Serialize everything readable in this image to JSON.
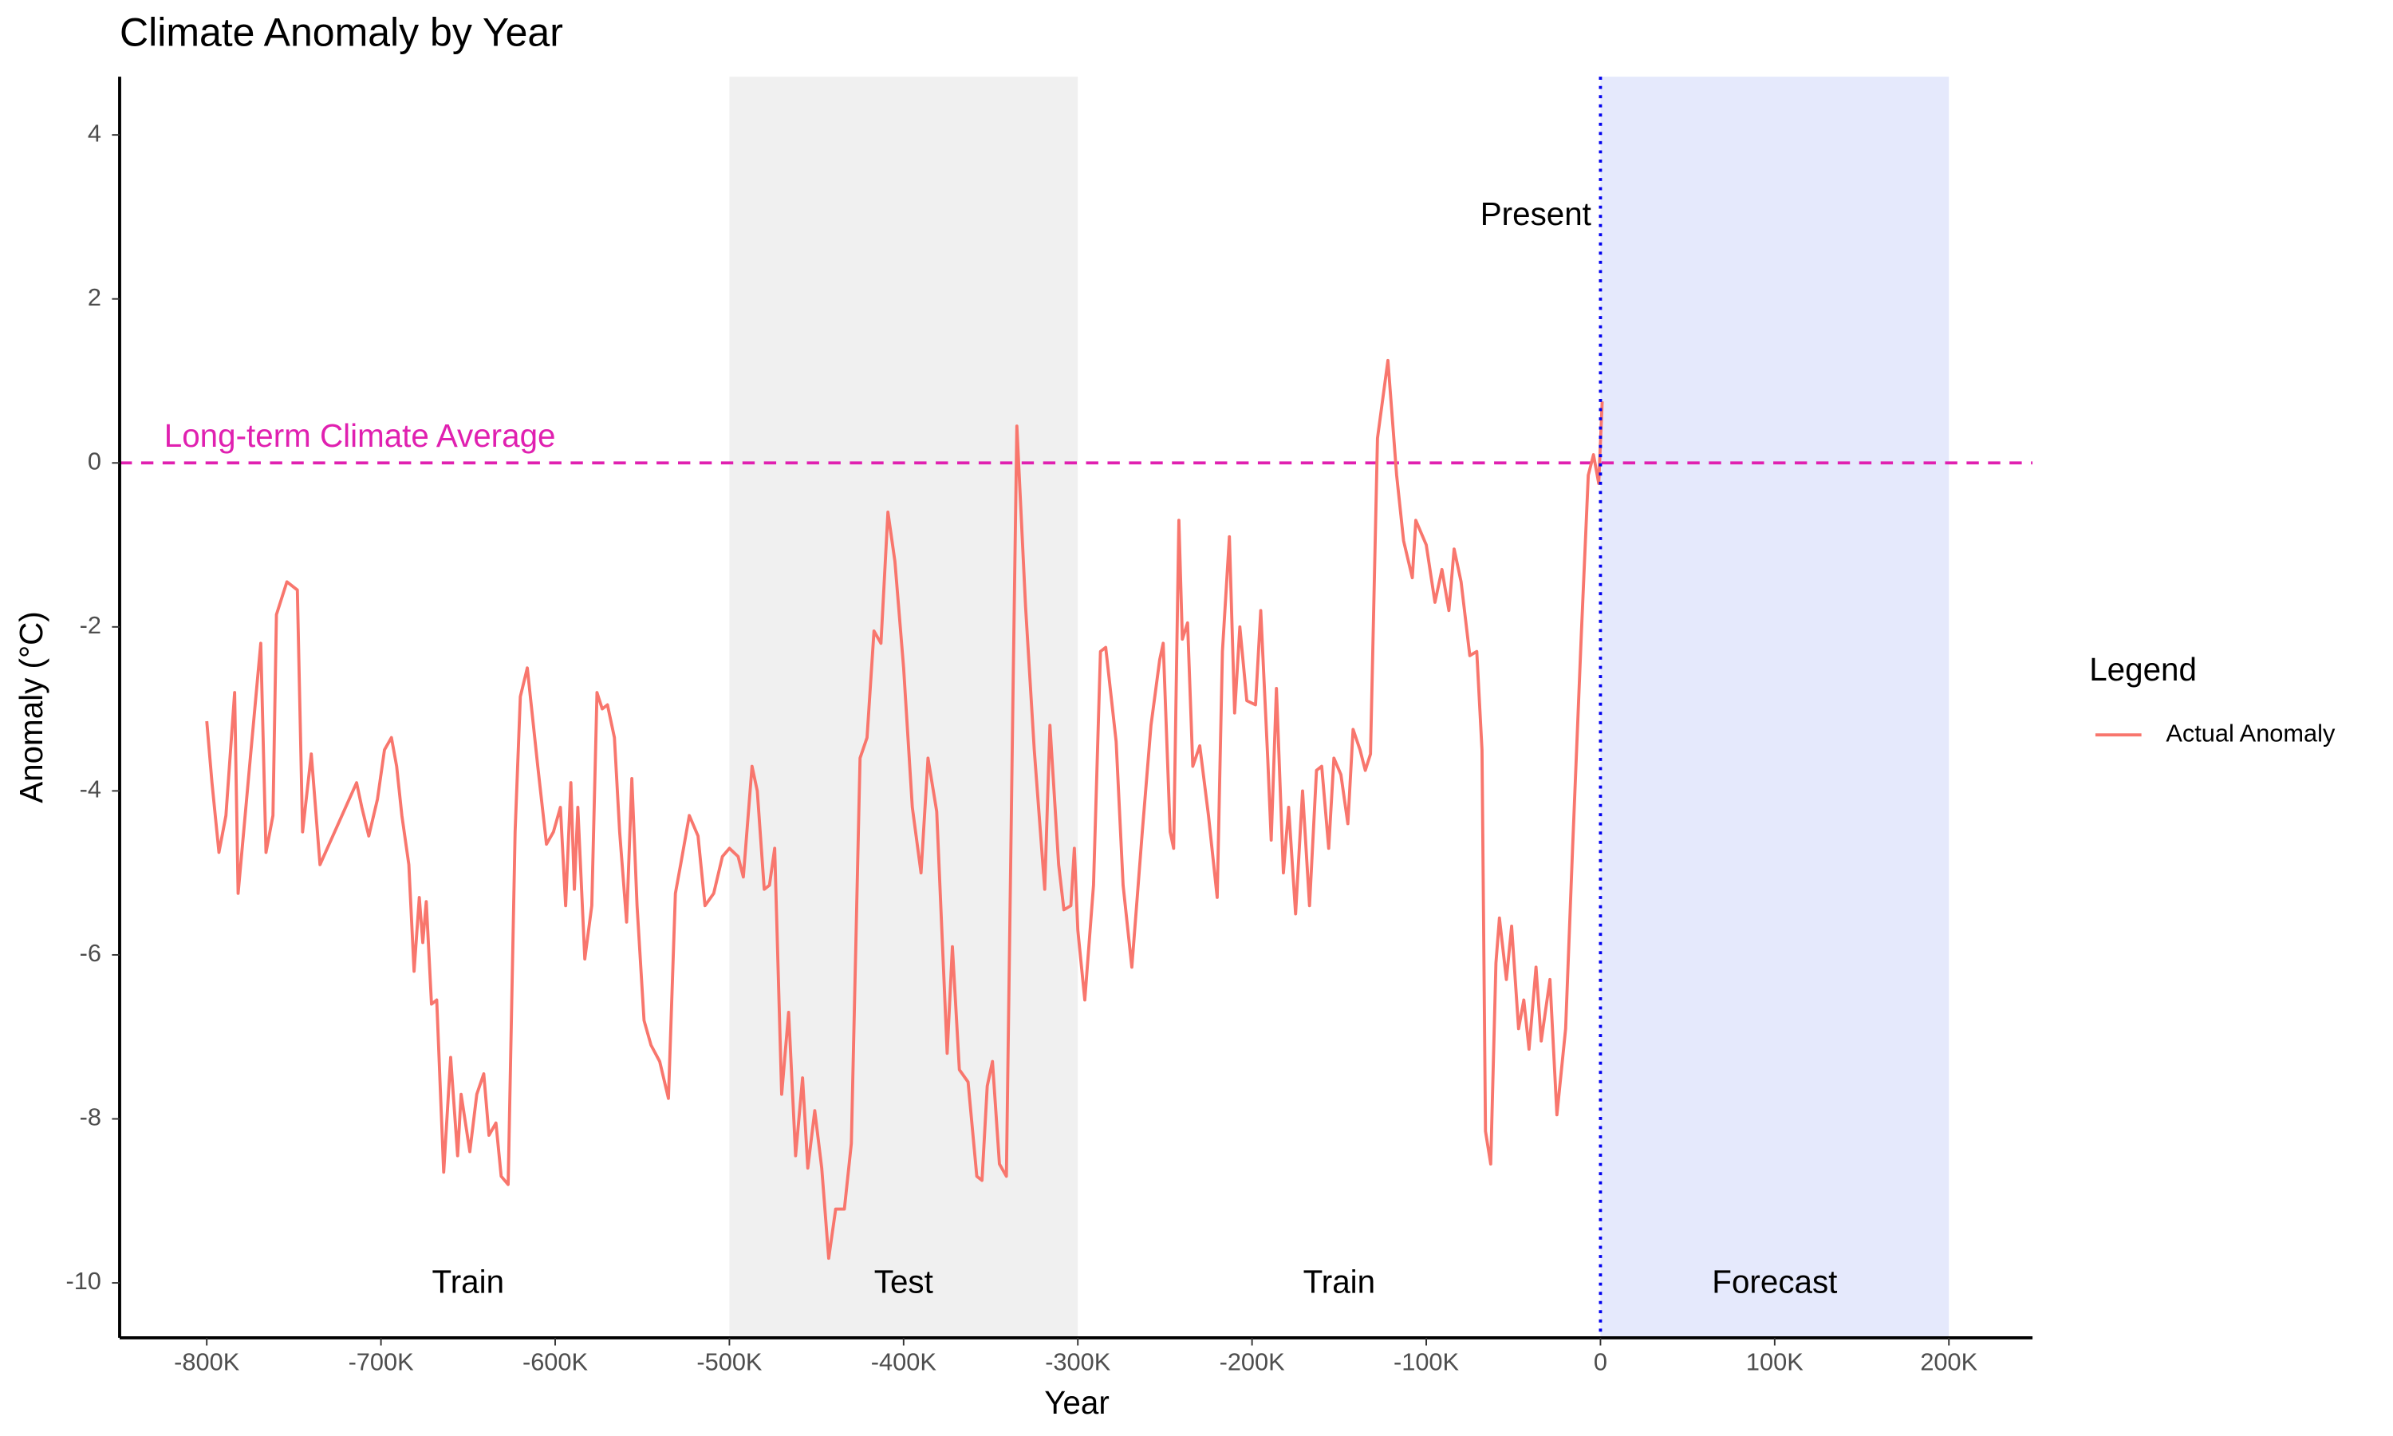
{
  "chart_data": {
    "type": "line",
    "title": "Climate Anomaly by Year",
    "x_label": "Year",
    "y_label": "Anomaly (°C)",
    "legend_title": "Legend",
    "legend_position": "right",
    "series": [
      {
        "name": "Actual Anomaly",
        "color": "#f8766d",
        "x": [
          -800000,
          -797000,
          -793000,
          -789000,
          -784000,
          -782000,
          -775000,
          -769000,
          -766000,
          -762000,
          -760000,
          -754000,
          -748000,
          -745000,
          -740000,
          -735000,
          -714000,
          -711000,
          -707000,
          -702000,
          -698000,
          -694000,
          -691000,
          -688000,
          -684000,
          -681000,
          -678000,
          -676000,
          -674000,
          -671000,
          -668000,
          -664000,
          -660000,
          -656000,
          -654000,
          -649000,
          -645000,
          -641000,
          -638000,
          -634000,
          -631000,
          -627000,
          -623000,
          -620000,
          -616000,
          -610000,
          -605000,
          -601000,
          -597000,
          -594000,
          -591000,
          -589000,
          -587000,
          -583000,
          -579000,
          -576000,
          -573000,
          -570000,
          -566000,
          -563000,
          -559000,
          -556000,
          -553000,
          -549000,
          -545000,
          -540000,
          -535000,
          -531000,
          -528000,
          -523000,
          -518000,
          -514000,
          -509000,
          -504000,
          -500000,
          -495000,
          -492000,
          -487000,
          -484000,
          -480000,
          -477000,
          -474000,
          -470000,
          -466000,
          -462000,
          -458000,
          -455000,
          -451000,
          -447000,
          -443000,
          -439000,
          -434000,
          -430000,
          -425000,
          -421000,
          -417000,
          -413000,
          -409000,
          -405000,
          -400000,
          -395000,
          -390000,
          -386000,
          -381000,
          -375000,
          -372000,
          -368000,
          -363000,
          -358000,
          -355000,
          -352000,
          -349000,
          -345000,
          -341000,
          -337000,
          -335000,
          -330000,
          -325000,
          -319000,
          -316000,
          -311000,
          -308000,
          -304000,
          -302000,
          -300000,
          -296000,
          -291000,
          -287000,
          -284000,
          -278000,
          -274000,
          -269000,
          -263000,
          -258000,
          -253000,
          -251000,
          -247000,
          -245000,
          -242000,
          -240000,
          -237000,
          -234000,
          -230000,
          -225000,
          -220000,
          -217000,
          -213000,
          -210000,
          -207000,
          -203000,
          -198000,
          -195000,
          -191000,
          -189000,
          -186000,
          -182000,
          -179000,
          -175000,
          -171000,
          -167000,
          -163000,
          -160000,
          -156000,
          -153000,
          -149000,
          -145000,
          -142000,
          -138000,
          -135000,
          -132000,
          -128000,
          -122000,
          -117000,
          -113000,
          -108000,
          -106000,
          -100000,
          -95000,
          -91000,
          -87000,
          -84000,
          -80000,
          -75000,
          -71000,
          -68000,
          -66000,
          -63000,
          -60000,
          -58000,
          -54000,
          -51000,
          -47000,
          -44000,
          -41000,
          -37000,
          -34000,
          -29000,
          -25000,
          -20000,
          -16000,
          -11000,
          -7000,
          -4000,
          -1000,
          1000
        ],
        "values": [
          -3.15,
          -3.9,
          -4.75,
          -4.3,
          -2.8,
          -5.25,
          -3.6,
          -2.2,
          -4.75,
          -4.3,
          -1.85,
          -1.45,
          -1.55,
          -4.5,
          -3.55,
          -4.9,
          -3.9,
          -4.2,
          -4.55,
          -4.1,
          -3.5,
          -3.35,
          -3.7,
          -4.3,
          -4.9,
          -6.2,
          -5.3,
          -5.85,
          -5.35,
          -6.6,
          -6.55,
          -8.65,
          -7.25,
          -8.45,
          -7.7,
          -8.4,
          -7.7,
          -7.45,
          -8.2,
          -8.05,
          -8.7,
          -8.8,
          -4.5,
          -2.85,
          -2.5,
          -3.7,
          -4.65,
          -4.5,
          -4.2,
          -5.4,
          -3.9,
          -5.2,
          -4.2,
          -6.05,
          -5.4,
          -2.8,
          -3.0,
          -2.95,
          -3.35,
          -4.5,
          -5.6,
          -3.85,
          -5.4,
          -6.8,
          -7.1,
          -7.3,
          -7.75,
          -5.25,
          -4.9,
          -4.3,
          -4.55,
          -5.4,
          -5.25,
          -4.8,
          -4.7,
          -4.8,
          -5.05,
          -3.7,
          -4.0,
          -5.2,
          -5.15,
          -4.7,
          -7.7,
          -6.7,
          -8.45,
          -7.5,
          -8.6,
          -7.9,
          -8.6,
          -9.7,
          -9.1,
          -9.1,
          -8.3,
          -3.6,
          -3.35,
          -2.05,
          -2.2,
          -0.6,
          -1.2,
          -2.5,
          -4.2,
          -5.0,
          -3.6,
          -4.25,
          -7.2,
          -5.9,
          -7.4,
          -7.55,
          -8.7,
          -8.75,
          -7.6,
          -7.3,
          -8.55,
          -8.7,
          -2.5,
          0.45,
          -1.75,
          -3.5,
          -5.2,
          -3.2,
          -4.9,
          -5.45,
          -5.4,
          -4.7,
          -5.7,
          -6.55,
          -5.15,
          -2.3,
          -2.25,
          -3.4,
          -5.15,
          -6.15,
          -4.5,
          -3.2,
          -2.4,
          -2.2,
          -4.5,
          -4.7,
          -0.7,
          -2.15,
          -1.95,
          -3.7,
          -3.45,
          -4.3,
          -5.3,
          -2.3,
          -0.9,
          -3.05,
          -2.0,
          -2.9,
          -2.95,
          -1.8,
          -3.6,
          -4.6,
          -2.75,
          -5.0,
          -4.2,
          -5.5,
          -4.0,
          -5.4,
          -3.75,
          -3.7,
          -4.7,
          -3.6,
          -3.8,
          -4.4,
          -3.25,
          -3.5,
          -3.75,
          -3.55,
          0.3,
          1.25,
          -0.15,
          -0.95,
          -1.4,
          -0.7,
          -1.0,
          -1.7,
          -1.3,
          -1.8,
          -1.05,
          -1.45,
          -2.35,
          -2.3,
          -3.5,
          -8.15,
          -8.55,
          -6.1,
          -5.55,
          -6.3,
          -5.65,
          -6.9,
          -6.55,
          -7.15,
          -6.15,
          -7.05,
          -6.3,
          -7.95,
          -6.9,
          -4.7,
          -2.1,
          -0.15,
          0.1,
          -0.25,
          0.75
        ]
      }
    ],
    "regions": [
      {
        "label": "Train",
        "start": -800000,
        "end": -500000,
        "color": null
      },
      {
        "label": "Test",
        "start": -500000,
        "end": -300000,
        "color": "#f0f0f0"
      },
      {
        "label": "Train",
        "start": -300000,
        "end": 0,
        "color": null
      },
      {
        "label": "Forecast",
        "start": 0,
        "end": 200000,
        "color": "#e5e9fc"
      }
    ],
    "hline": {
      "value": 0,
      "label": "Long-term Climate Average",
      "color": "#e020b0"
    },
    "vline": {
      "value": 0,
      "label": "Present",
      "color": "#0000ee"
    },
    "xlim": [
      -850000,
      248000
    ],
    "ylim": [
      -10.67,
      4.71
    ],
    "xticks": [
      {
        "value": -800000,
        "label": "-800K"
      },
      {
        "value": -700000,
        "label": "-700K"
      },
      {
        "value": -600000,
        "label": "-600K"
      },
      {
        "value": -500000,
        "label": "-500K"
      },
      {
        "value": -400000,
        "label": "-400K"
      },
      {
        "value": -300000,
        "label": "-300K"
      },
      {
        "value": -200000,
        "label": "-200K"
      },
      {
        "value": -100000,
        "label": "-100K"
      },
      0,
      {
        "value": 100000,
        "label": "100K"
      },
      {
        "value": 200000,
        "label": "200K"
      }
    ],
    "yticks": [
      4,
      2,
      0,
      -2,
      -4,
      -6,
      -8,
      -10
    ]
  }
}
